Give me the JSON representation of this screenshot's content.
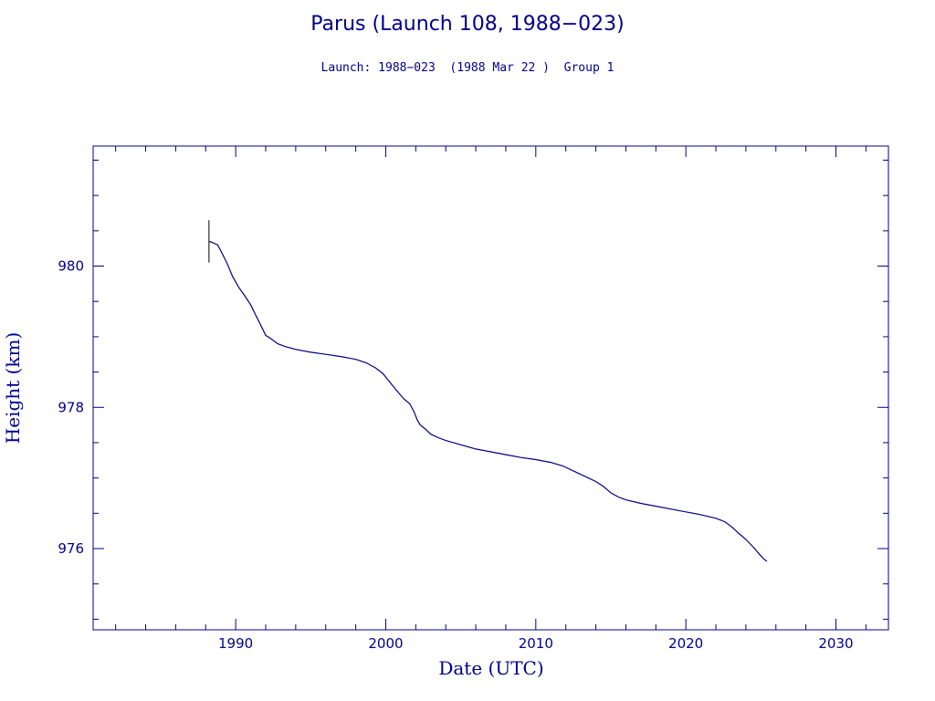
{
  "chart_data": {
    "type": "line",
    "title": "Parus (Launch 108, 1988−023)",
    "subtitle": "Launch: 1988−023  (1988 Mar 22 )  Group 1",
    "xlabel": "Date (UTC)",
    "ylabel": "Height (km)",
    "xlim": [
      1980.5,
      2033.5
    ],
    "ylim": [
      974.85,
      981.7
    ],
    "x_ticks": [
      1990,
      2000,
      2010,
      2020,
      2030
    ],
    "y_ticks": [
      976,
      978,
      980
    ],
    "grid": false,
    "launch_marker": {
      "x": 1988.22,
      "y_low": 980.05,
      "y_high": 980.65
    },
    "series": [
      {
        "x": [
          1988.25,
          1988.5,
          1988.8,
          1989.1,
          1989.4,
          1989.8,
          1990.2,
          1990.6,
          1991.0,
          1991.3,
          1991.7,
          1992.0,
          1992.3,
          1992.8,
          1993.3,
          1994.0,
          1995.0,
          1996.0,
          1997.0,
          1998.0,
          1998.7,
          1999.3,
          1999.8,
          2000.3,
          2000.8,
          2001.2,
          2001.6,
          2001.9,
          2002.1,
          2002.3,
          2002.6,
          2003.0,
          2003.5,
          2004.0,
          2005.0,
          2006.0,
          2007.0,
          2008.0,
          2009.0,
          2010.0,
          2011.0,
          2011.8,
          2012.5,
          2013.2,
          2014.0,
          2014.5,
          2015.0,
          2015.5,
          2016.0,
          2017.0,
          2018.0,
          2019.0,
          2020.0,
          2021.0,
          2022.0,
          2022.6,
          2023.1,
          2023.5,
          2024.0,
          2024.5,
          2024.9,
          2025.2,
          2025.4
        ],
        "y": [
          980.35,
          980.33,
          980.3,
          980.18,
          980.05,
          979.85,
          979.7,
          979.58,
          979.45,
          979.32,
          979.15,
          979.02,
          978.98,
          978.9,
          978.86,
          978.82,
          978.78,
          978.75,
          978.72,
          978.68,
          978.63,
          978.56,
          978.48,
          978.35,
          978.22,
          978.12,
          978.05,
          977.93,
          977.82,
          977.75,
          977.7,
          977.62,
          977.57,
          977.53,
          977.47,
          977.41,
          977.37,
          977.33,
          977.29,
          977.26,
          977.22,
          977.17,
          977.1,
          977.03,
          976.95,
          976.88,
          976.79,
          976.73,
          976.69,
          976.64,
          976.6,
          976.56,
          976.52,
          976.48,
          976.43,
          976.38,
          976.3,
          976.22,
          976.13,
          976.02,
          975.92,
          975.85,
          975.82
        ]
      }
    ]
  },
  "colors": {
    "axis": "#00008b",
    "line": "#000080",
    "marker": "#000000"
  }
}
